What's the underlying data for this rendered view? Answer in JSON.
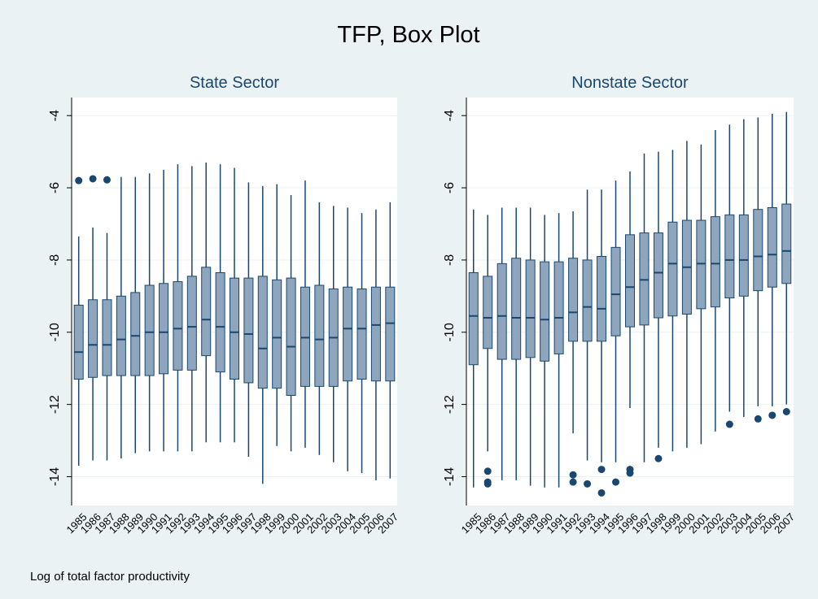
{
  "title": "TFP, Box Plot",
  "note": "Log of total factor productivity",
  "chart_data": [
    {
      "type": "box",
      "title": "State Sector",
      "categories": [
        "1985",
        "1986",
        "1987",
        "1988",
        "1989",
        "1990",
        "1991",
        "1992",
        "1993",
        "1994",
        "1995",
        "1996",
        "1997",
        "1998",
        "1999",
        "2000",
        "2001",
        "2002",
        "2003",
        "2004",
        "2005",
        "2006",
        "2007"
      ],
      "boxes": [
        {
          "min": -13.7,
          "q1": -11.3,
          "median": -10.55,
          "q3": -9.25,
          "max": -7.35,
          "outliers": [
            -5.8
          ]
        },
        {
          "min": -13.55,
          "q1": -11.25,
          "median": -10.35,
          "q3": -9.1,
          "max": -7.1,
          "outliers": [
            -5.75
          ]
        },
        {
          "min": -13.55,
          "q1": -11.2,
          "median": -10.35,
          "q3": -9.1,
          "max": -7.25,
          "outliers": [
            -5.78
          ]
        },
        {
          "min": -13.5,
          "q1": -11.2,
          "median": -10.2,
          "q3": -9.0,
          "max": -5.7
        },
        {
          "min": -13.35,
          "q1": -11.2,
          "median": -10.1,
          "q3": -8.9,
          "max": -5.7
        },
        {
          "min": -13.3,
          "q1": -11.2,
          "median": -10.0,
          "q3": -8.7,
          "max": -5.6
        },
        {
          "min": -13.3,
          "q1": -11.15,
          "median": -10.0,
          "q3": -8.65,
          "max": -5.5
        },
        {
          "min": -13.3,
          "q1": -11.05,
          "median": -9.9,
          "q3": -8.6,
          "max": -5.35
        },
        {
          "min": -13.3,
          "q1": -11.05,
          "median": -9.85,
          "q3": -8.45,
          "max": -5.4
        },
        {
          "min": -13.05,
          "q1": -10.65,
          "median": -9.65,
          "q3": -8.2,
          "max": -5.3
        },
        {
          "min": -13.05,
          "q1": -11.1,
          "median": -9.85,
          "q3": -8.35,
          "max": -5.35
        },
        {
          "min": -13.05,
          "q1": -11.3,
          "median": -10.0,
          "q3": -8.5,
          "max": -5.45
        },
        {
          "min": -13.45,
          "q1": -11.4,
          "median": -10.05,
          "q3": -8.5,
          "max": -5.85
        },
        {
          "min": -14.2,
          "q1": -11.55,
          "median": -10.45,
          "q3": -8.45,
          "max": -5.95
        },
        {
          "min": -13.15,
          "q1": -11.55,
          "median": -10.15,
          "q3": -8.55,
          "max": -5.9
        },
        {
          "min": -13.3,
          "q1": -11.75,
          "median": -10.4,
          "q3": -8.5,
          "max": -6.2
        },
        {
          "min": -13.2,
          "q1": -11.5,
          "median": -10.15,
          "q3": -8.75,
          "max": -5.8
        },
        {
          "min": -13.4,
          "q1": -11.5,
          "median": -10.2,
          "q3": -8.7,
          "max": -6.4
        },
        {
          "min": -13.6,
          "q1": -11.5,
          "median": -10.15,
          "q3": -8.8,
          "max": -6.5
        },
        {
          "min": -13.85,
          "q1": -11.35,
          "median": -9.9,
          "q3": -8.75,
          "max": -6.55
        },
        {
          "min": -13.9,
          "q1": -11.3,
          "median": -9.9,
          "q3": -8.8,
          "max": -6.7
        },
        {
          "min": -14.1,
          "q1": -11.35,
          "median": -9.8,
          "q3": -8.75,
          "max": -6.6
        },
        {
          "min": -14.05,
          "q1": -11.35,
          "median": -9.75,
          "q3": -8.75,
          "max": -6.4
        }
      ],
      "color": "#8ea6bd",
      "line_color": "#1a476f",
      "ylim": [
        -14.8,
        -3.5
      ],
      "yticks": [
        -14,
        -12,
        -10,
        -8,
        -6,
        -4
      ],
      "grid": true
    },
    {
      "type": "box",
      "title": "Nonstate Sector",
      "categories": [
        "1985",
        "1986",
        "1987",
        "1988",
        "1989",
        "1990",
        "1991",
        "1992",
        "1993",
        "1994",
        "1995",
        "1996",
        "1997",
        "1998",
        "1999",
        "2000",
        "2001",
        "2002",
        "2003",
        "2004",
        "2005",
        "2006",
        "2007"
      ],
      "boxes": [
        {
          "min": -14.3,
          "q1": -10.9,
          "median": -9.55,
          "q3": -8.35,
          "max": -6.6
        },
        {
          "min": -13.3,
          "q1": -10.45,
          "median": -9.6,
          "q3": -8.45,
          "max": -6.75,
          "outliers": [
            -13.85,
            -14.15,
            -14.2
          ]
        },
        {
          "min": -14.1,
          "q1": -10.75,
          "median": -9.55,
          "q3": -8.1,
          "max": -6.55
        },
        {
          "min": -14.1,
          "q1": -10.75,
          "median": -9.6,
          "q3": -7.95,
          "max": -6.55
        },
        {
          "min": -14.25,
          "q1": -10.7,
          "median": -9.6,
          "q3": -8.0,
          "max": -6.55
        },
        {
          "min": -14.3,
          "q1": -10.8,
          "median": -9.65,
          "q3": -8.05,
          "max": -6.75
        },
        {
          "min": -14.3,
          "q1": -10.6,
          "median": -9.6,
          "q3": -8.05,
          "max": -6.7
        },
        {
          "min": -12.8,
          "q1": -10.25,
          "median": -9.45,
          "q3": -7.95,
          "max": -6.65,
          "outliers": [
            -13.95,
            -14.15
          ]
        },
        {
          "min": -13.55,
          "q1": -10.25,
          "median": -9.3,
          "q3": -8.0,
          "max": -6.05,
          "outliers": [
            -14.2
          ]
        },
        {
          "min": -13.6,
          "q1": -10.25,
          "median": -9.35,
          "q3": -7.9,
          "max": -6.05,
          "outliers": [
            -13.8,
            -14.45
          ]
        },
        {
          "min": -13.6,
          "q1": -10.1,
          "median": -8.95,
          "q3": -7.65,
          "max": -5.8,
          "outliers": [
            -14.15
          ]
        },
        {
          "min": -12.1,
          "q1": -9.85,
          "median": -8.75,
          "q3": -7.3,
          "max": -5.55,
          "outliers": [
            -13.8,
            -13.9
          ]
        },
        {
          "min": -13.6,
          "q1": -9.8,
          "median": -8.55,
          "q3": -7.25,
          "max": -5.05
        },
        {
          "min": -13.2,
          "q1": -9.6,
          "median": -8.35,
          "q3": -7.25,
          "max": -5.0,
          "outliers": [
            -13.5
          ]
        },
        {
          "min": -13.3,
          "q1": -9.55,
          "median": -8.1,
          "q3": -6.95,
          "max": -4.95
        },
        {
          "min": -13.2,
          "q1": -9.5,
          "median": -8.2,
          "q3": -6.9,
          "max": -4.7
        },
        {
          "min": -13.1,
          "q1": -9.35,
          "median": -8.1,
          "q3": -6.9,
          "max": -4.8
        },
        {
          "min": -12.75,
          "q1": -9.3,
          "median": -8.1,
          "q3": -6.8,
          "max": -4.4
        },
        {
          "min": -12.2,
          "q1": -9.05,
          "median": -8.0,
          "q3": -6.75,
          "max": -4.25,
          "outliers": [
            -12.55
          ]
        },
        {
          "min": -12.35,
          "q1": -9.0,
          "median": -8.0,
          "q3": -6.75,
          "max": -4.1
        },
        {
          "min": -12.05,
          "q1": -8.85,
          "median": -7.9,
          "q3": -6.6,
          "max": -4.05,
          "outliers": [
            -12.4
          ]
        },
        {
          "min": -12.05,
          "q1": -8.75,
          "median": -7.85,
          "q3": -6.55,
          "max": -3.95,
          "outliers": [
            -12.3
          ]
        },
        {
          "min": -12.0,
          "q1": -8.65,
          "median": -7.75,
          "q3": -6.45,
          "max": -3.9,
          "outliers": [
            -12.2
          ]
        }
      ],
      "color": "#8ea6bd",
      "line_color": "#1a476f",
      "ylim": [
        -14.8,
        -3.5
      ],
      "yticks": [
        -14,
        -12,
        -10,
        -8,
        -6,
        -4
      ],
      "grid": true
    }
  ]
}
